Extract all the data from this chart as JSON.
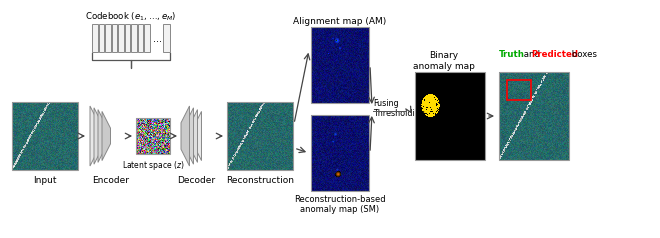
{
  "background_color": "#ffffff",
  "codebook_label": "Codebook $(e_1,\\ldots,e_M)$",
  "latent_label": "Latent space $(z)$",
  "input_label": "Input",
  "encoder_label": "Encoder",
  "decoder_label": "Decoder",
  "reconstruction_label": "Reconstruction",
  "alignment_label": "Alignment map (AM)",
  "reconstruction_anomaly_label": "Reconstruction-based\nanomaly map (SM)",
  "binary_label": "Binary\nanomaly map",
  "truth_label": "Truth",
  "predicted_label": "Predicted",
  "boxes_and": " and ",
  "boxes_end": " boxes",
  "fusing_label": "Fusing\nThresholding",
  "fig_width": 6.4,
  "fig_height": 2.11
}
